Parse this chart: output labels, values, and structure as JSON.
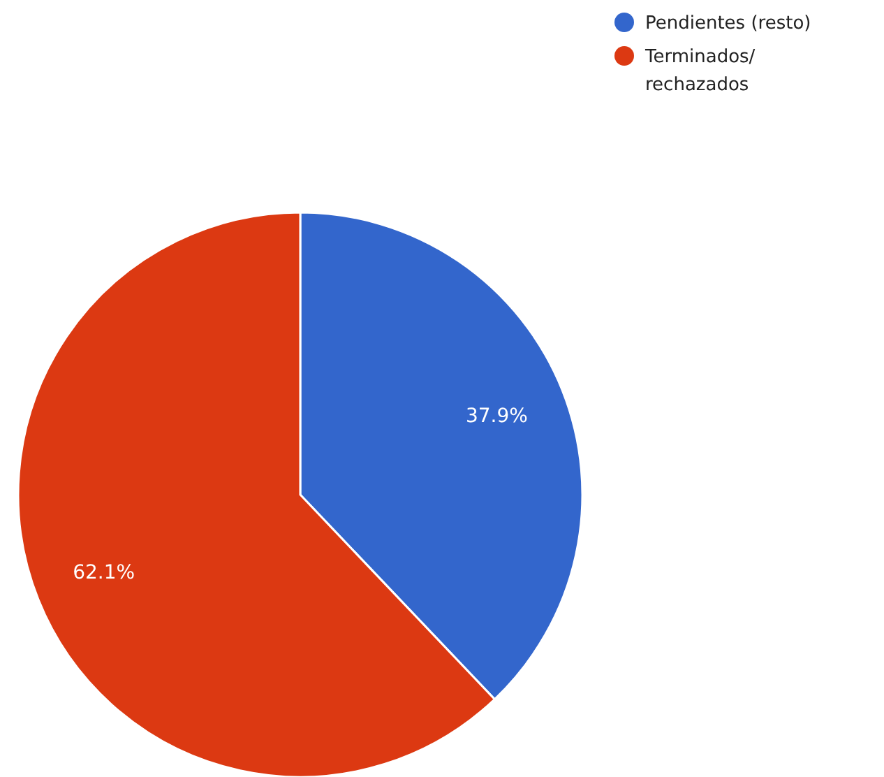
{
  "chart_data": {
    "type": "pie",
    "categories": [
      "Pendientes (resto)",
      "Terminados/ rechazados"
    ],
    "values": [
      37.9,
      62.1
    ],
    "colors": [
      "#3366cc",
      "#dc3912"
    ],
    "value_labels": [
      "37.9%",
      "62.1%"
    ],
    "legend": "top right"
  }
}
